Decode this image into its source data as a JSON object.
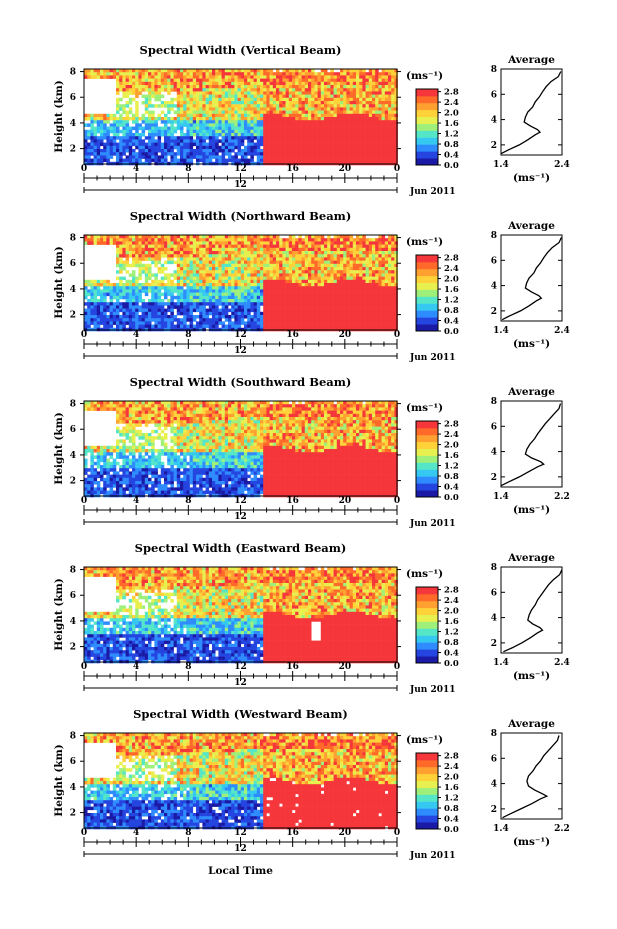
{
  "figure": {
    "xlabel": "Local Time",
    "colorscale": [
      "#1a1aa6",
      "#2545e0",
      "#2f8cff",
      "#35c8f0",
      "#55e6c8",
      "#9ef07a",
      "#e8f050",
      "#ffd23a",
      "#ffa030",
      "#ff6a2a",
      "#f5363a"
    ]
  },
  "chart_data": [
    {
      "type": "heatmap",
      "title": "Spectral Width (Vertical Beam)",
      "ylabel": "Height (km)",
      "xlabel": "",
      "x_ticks": [
        "0",
        "4",
        "8",
        "12",
        "16",
        "20",
        "0"
      ],
      "x_range_hours": [
        0,
        24
      ],
      "y_ticks": [
        "2",
        "4",
        "6",
        "8"
      ],
      "y_range_km": [
        0.8,
        8.2
      ],
      "date_label": "12",
      "date_suffix": "Jun 2011",
      "colorbar": {
        "unit": "(ms⁻¹)",
        "ticks": [
          "0.0",
          "0.4",
          "0.8",
          "1.2",
          "1.6",
          "2.0",
          "2.4",
          "2.8"
        ],
        "range": [
          0.0,
          2.9
        ]
      },
      "profile": {
        "title": "Average",
        "xlabel": "(ms⁻¹)",
        "x_ticks": [
          "1.4",
          "2.4"
        ],
        "x_range": [
          1.4,
          2.4
        ],
        "y_ticks": [
          "2",
          "4",
          "6",
          "8"
        ],
        "y_range": [
          1.2,
          8.0
        ],
        "height_km": [
          1.3,
          1.6,
          2.0,
          2.4,
          2.8,
          3.0,
          3.2,
          3.5,
          3.8,
          4.2,
          4.6,
          5.0,
          5.4,
          5.8,
          6.2,
          6.6,
          7.0,
          7.4,
          7.8
        ],
        "value": [
          1.4,
          1.52,
          1.7,
          1.84,
          1.96,
          2.04,
          2.0,
          1.88,
          1.78,
          1.8,
          1.84,
          1.92,
          1.96,
          2.03,
          2.08,
          2.14,
          2.22,
          2.34,
          2.38
        ]
      }
    },
    {
      "type": "heatmap",
      "title": "Spectral Width (Northward Beam)",
      "ylabel": "Height (km)",
      "xlabel": "",
      "x_ticks": [
        "0",
        "4",
        "8",
        "12",
        "16",
        "20",
        "0"
      ],
      "x_range_hours": [
        0,
        24
      ],
      "y_ticks": [
        "2",
        "4",
        "6",
        "8"
      ],
      "y_range_km": [
        0.8,
        8.2
      ],
      "date_label": "12",
      "date_suffix": "Jun 2011",
      "colorbar": {
        "unit": "(ms⁻¹)",
        "ticks": [
          "0.0",
          "0.4",
          "0.8",
          "1.2",
          "1.6",
          "2.0",
          "2.4",
          "2.8"
        ],
        "range": [
          0.0,
          2.9
        ]
      },
      "profile": {
        "title": "Average",
        "xlabel": "(ms⁻¹)",
        "x_ticks": [
          "1.4",
          "2.4"
        ],
        "x_range": [
          1.4,
          2.4
        ],
        "y_ticks": [
          "2",
          "4",
          "6",
          "8"
        ],
        "y_range": [
          1.2,
          8.0
        ],
        "height_km": [
          1.3,
          1.6,
          2.0,
          2.4,
          2.8,
          3.0,
          3.2,
          3.5,
          3.8,
          4.2,
          4.6,
          5.0,
          5.4,
          5.8,
          6.2,
          6.6,
          7.0,
          7.4,
          7.8
        ],
        "value": [
          1.42,
          1.54,
          1.72,
          1.86,
          1.98,
          2.06,
          2.02,
          1.9,
          1.8,
          1.82,
          1.86,
          1.94,
          1.98,
          2.05,
          2.1,
          2.16,
          2.24,
          2.35,
          2.39
        ]
      }
    },
    {
      "type": "heatmap",
      "title": "Spectral Width (Southward Beam)",
      "ylabel": "Height (km)",
      "xlabel": "",
      "x_ticks": [
        "0",
        "4",
        "8",
        "12",
        "16",
        "20",
        "0"
      ],
      "x_range_hours": [
        0,
        24
      ],
      "y_ticks": [
        "2",
        "4",
        "6",
        "8"
      ],
      "y_range_km": [
        0.8,
        8.2
      ],
      "date_label": "12",
      "date_suffix": "Jun 2011",
      "colorbar": {
        "unit": "(ms⁻¹)",
        "ticks": [
          "0.0",
          "0.4",
          "0.8",
          "1.2",
          "1.6",
          "2.0",
          "2.4",
          "2.8"
        ],
        "range": [
          0.0,
          2.9
        ]
      },
      "profile": {
        "title": "Average",
        "xlabel": "(ms⁻¹)",
        "x_ticks": [
          "1.4",
          "2.2"
        ],
        "x_range": [
          1.4,
          2.2
        ],
        "y_ticks": [
          "2",
          "4",
          "6",
          "8"
        ],
        "y_range": [
          1.2,
          8.0
        ],
        "height_km": [
          1.3,
          1.6,
          2.0,
          2.4,
          2.8,
          3.0,
          3.2,
          3.5,
          3.8,
          4.2,
          4.6,
          5.0,
          5.4,
          5.8,
          6.2,
          6.6,
          7.0,
          7.4,
          7.8
        ],
        "value": [
          1.4,
          1.5,
          1.64,
          1.76,
          1.88,
          1.96,
          1.92,
          1.8,
          1.72,
          1.74,
          1.78,
          1.84,
          1.88,
          1.93,
          1.98,
          2.04,
          2.1,
          2.16,
          2.18
        ]
      }
    },
    {
      "type": "heatmap",
      "title": "Spectral Width (Eastward Beam)",
      "ylabel": "Height (km)",
      "xlabel": "",
      "x_ticks": [
        "0",
        "4",
        "8",
        "12",
        "16",
        "20",
        "0"
      ],
      "x_range_hours": [
        0,
        24
      ],
      "y_ticks": [
        "2",
        "4",
        "6",
        "8"
      ],
      "y_range_km": [
        0.8,
        8.2
      ],
      "date_label": "12",
      "date_suffix": "Jun 2011",
      "colorbar": {
        "unit": "(ms⁻¹)",
        "ticks": [
          "0.0",
          "0.4",
          "0.8",
          "1.2",
          "1.6",
          "2.0",
          "2.4",
          "2.8"
        ],
        "range": [
          0.0,
          2.9
        ]
      },
      "profile": {
        "title": "Average",
        "xlabel": "(ms⁻¹)",
        "x_ticks": [
          "1.4",
          "2.4"
        ],
        "x_range": [
          1.4,
          2.4
        ],
        "y_ticks": [
          "2",
          "4",
          "6",
          "8"
        ],
        "y_range": [
          1.2,
          8.0
        ],
        "height_km": [
          1.3,
          1.6,
          2.0,
          2.4,
          2.8,
          3.0,
          3.2,
          3.5,
          3.8,
          4.2,
          4.6,
          5.0,
          5.4,
          5.8,
          6.2,
          6.6,
          7.0,
          7.4,
          7.8
        ],
        "value": [
          1.44,
          1.58,
          1.74,
          1.88,
          2.0,
          2.08,
          2.04,
          1.92,
          1.84,
          1.86,
          1.9,
          1.96,
          2.0,
          2.06,
          2.12,
          2.18,
          2.26,
          2.36,
          2.4
        ]
      }
    },
    {
      "type": "heatmap",
      "title": "Spectral Width (Westward Beam)",
      "ylabel": "Height (km)",
      "xlabel": "Local Time",
      "x_ticks": [
        "0",
        "4",
        "8",
        "12",
        "16",
        "20",
        "0"
      ],
      "x_range_hours": [
        0,
        24
      ],
      "y_ticks": [
        "2",
        "4",
        "6",
        "8"
      ],
      "y_range_km": [
        0.8,
        8.2
      ],
      "date_label": "12",
      "date_suffix": "Jun 2011",
      "colorbar": {
        "unit": "(ms⁻¹)",
        "ticks": [
          "0.0",
          "0.4",
          "0.8",
          "1.2",
          "1.6",
          "2.0",
          "2.4",
          "2.8"
        ],
        "range": [
          0.0,
          2.9
        ]
      },
      "profile": {
        "title": "Average",
        "xlabel": "(ms⁻¹)",
        "x_ticks": [
          "1.4",
          "2.2"
        ],
        "x_range": [
          1.4,
          2.2
        ],
        "y_ticks": [
          "2",
          "4",
          "6",
          "8"
        ],
        "y_range": [
          1.2,
          8.0
        ],
        "height_km": [
          1.3,
          1.6,
          2.0,
          2.4,
          2.8,
          3.0,
          3.2,
          3.5,
          3.8,
          4.2,
          4.6,
          5.0,
          5.4,
          5.8,
          6.2,
          6.6,
          7.0,
          7.4,
          7.8
        ],
        "value": [
          1.42,
          1.52,
          1.66,
          1.8,
          1.92,
          2.0,
          1.94,
          1.84,
          1.76,
          1.74,
          1.76,
          1.82,
          1.86,
          1.92,
          1.96,
          2.02,
          2.08,
          2.14,
          2.16
        ]
      }
    }
  ]
}
